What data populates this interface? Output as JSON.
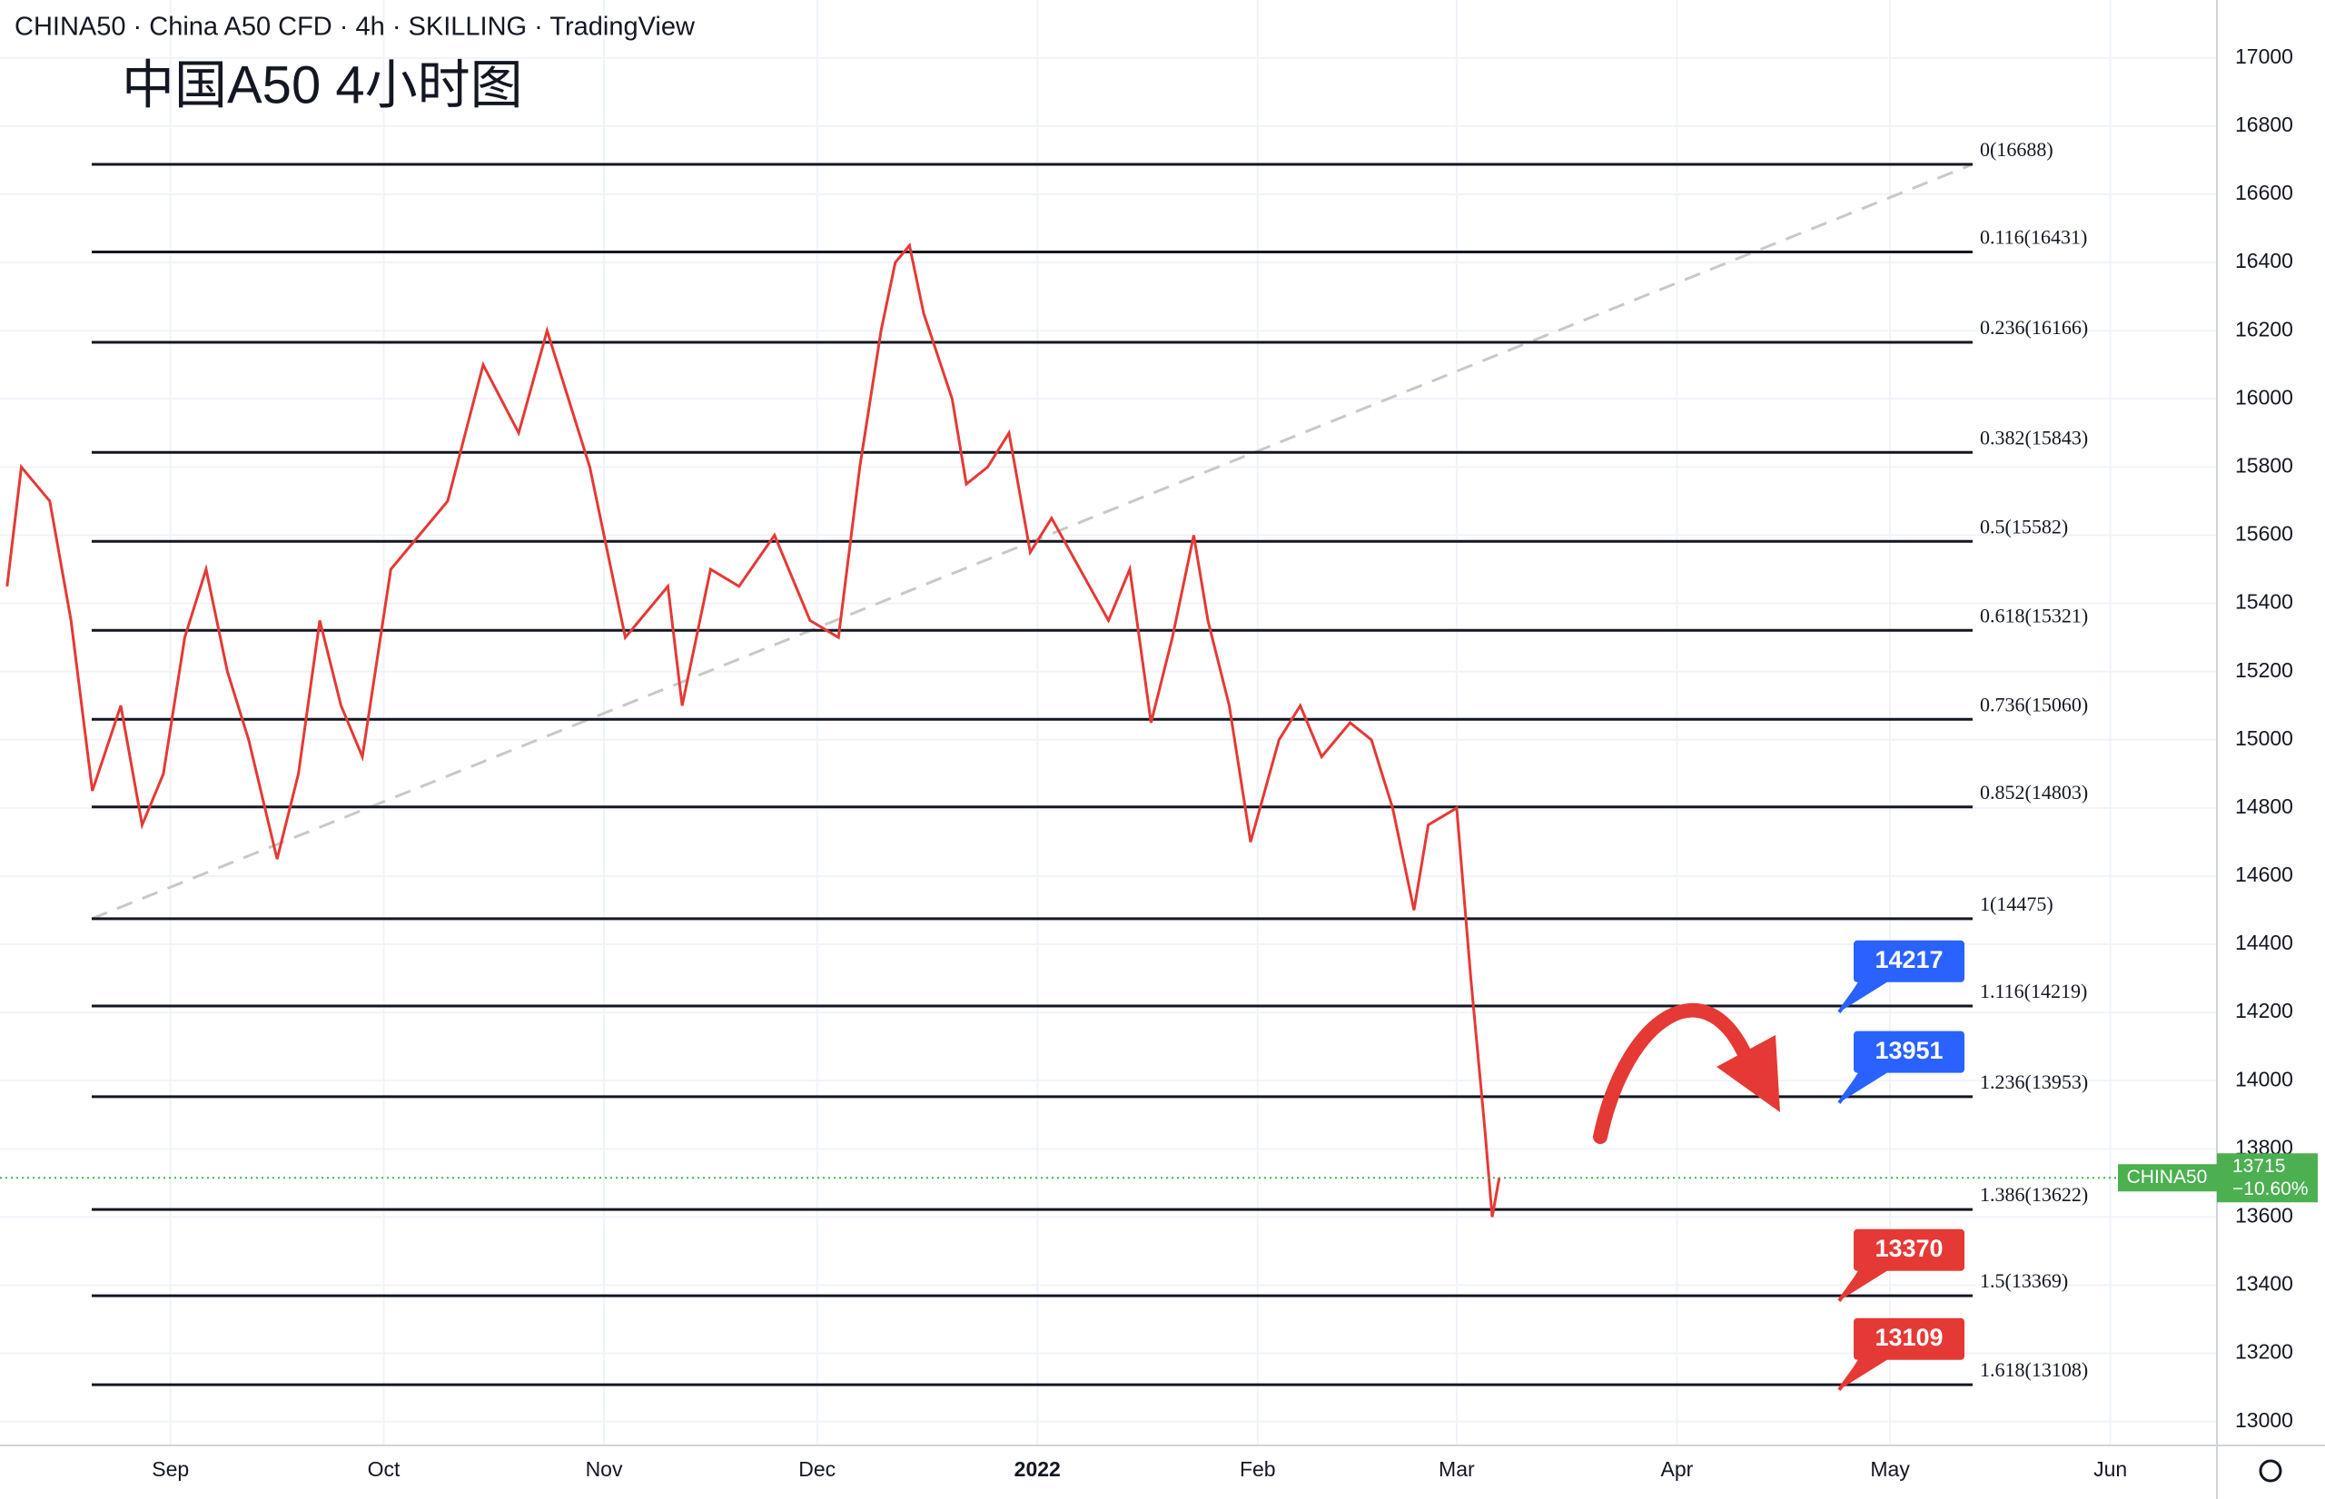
{
  "chart_data": {
    "type": "line",
    "header": "CHINA50 · China A50 CFD · 4h · SKILLING · TradingView",
    "title": "中国A50 4小时图",
    "x": [
      8,
      10,
      14,
      17,
      20,
      24,
      27,
      30,
      33,
      36,
      39,
      42,
      46,
      49,
      52,
      55,
      58,
      62,
      66,
      70,
      75,
      80,
      84,
      90,
      95,
      101,
      103,
      107,
      111,
      116,
      121,
      125,
      128,
      131,
      133,
      135,
      137,
      141,
      143,
      146,
      149,
      152,
      155,
      159,
      163,
      166,
      169,
      172,
      175,
      177,
      180,
      183,
      187,
      190,
      193,
      197,
      200,
      203,
      206,
      208,
      212,
      214,
      216,
      217,
      218
    ],
    "series": [
      {
        "color": "#e53935",
        "values": [
          15450,
          15800,
          15700,
          15350,
          14850,
          15100,
          14750,
          14900,
          15300,
          15500,
          15200,
          15000,
          14650,
          14900,
          15350,
          15100,
          14950,
          15500,
          15600,
          15700,
          16100,
          15900,
          16200,
          15800,
          15300,
          15450,
          15100,
          15500,
          15450,
          15600,
          15350,
          15300,
          15800,
          16200,
          16400,
          16450,
          16250,
          16000,
          15750,
          15800,
          15900,
          15550,
          15650,
          15500,
          15350,
          15500,
          15050,
          15300,
          15600,
          15350,
          15100,
          14700,
          15000,
          15100,
          14950,
          15050,
          15000,
          14800,
          14500,
          14750,
          14800,
          14300,
          13850,
          13600,
          13715
        ]
      }
    ],
    "xlim": [
      7,
      319
    ],
    "xticks": [
      {
        "value": 31,
        "label": "Sep"
      },
      {
        "value": 61,
        "label": "Oct"
      },
      {
        "value": 92,
        "label": "Nov"
      },
      {
        "value": 122,
        "label": "Dec"
      },
      {
        "value": 153,
        "label": "2022"
      },
      {
        "value": 184,
        "label": "Feb"
      },
      {
        "value": 212,
        "label": "Mar"
      },
      {
        "value": 243,
        "label": "Apr"
      },
      {
        "value": 273,
        "label": "May"
      },
      {
        "value": 304,
        "label": "Jun"
      }
    ],
    "ylim": [
      12930,
      17170
    ],
    "yticks": [
      13000,
      13200,
      13400,
      13600,
      13800,
      14000,
      14200,
      14400,
      14600,
      14800,
      15000,
      15200,
      15400,
      15600,
      15800,
      16000,
      16200,
      16400,
      16600,
      16800,
      17000
    ],
    "grid": true,
    "fib_levels": [
      {
        "value": 16688,
        "label": "0(16688)"
      },
      {
        "value": 16431,
        "label": "0.116(16431)"
      },
      {
        "value": 16166,
        "label": "0.236(16166)"
      },
      {
        "value": 15843,
        "label": "0.382(15843)"
      },
      {
        "value": 15582,
        "label": "0.5(15582)"
      },
      {
        "value": 15321,
        "label": "0.618(15321)"
      },
      {
        "value": 15060,
        "label": "0.736(15060)"
      },
      {
        "value": 14803,
        "label": "0.852(14803)"
      },
      {
        "value": 14475,
        "label": "1(14475)"
      },
      {
        "value": 14219,
        "label": "1.116(14219)"
      },
      {
        "value": 13953,
        "label": "1.236(13953)"
      },
      {
        "value": 13622,
        "label": "1.386(13622)"
      },
      {
        "value": 13369,
        "label": "1.5(13369)"
      },
      {
        "value": 13108,
        "label": "1.618(13108)"
      }
    ],
    "targets": [
      {
        "value": 14217,
        "color": "#2962ff"
      },
      {
        "value": 13951,
        "color": "#2962ff"
      },
      {
        "value": 13370,
        "color": "#e53935"
      },
      {
        "value": 13109,
        "color": "#e53935"
      }
    ],
    "last_price": {
      "label": "CHINA50",
      "value": 13715,
      "change": "−10.60%",
      "color": "#4caf50"
    }
  }
}
